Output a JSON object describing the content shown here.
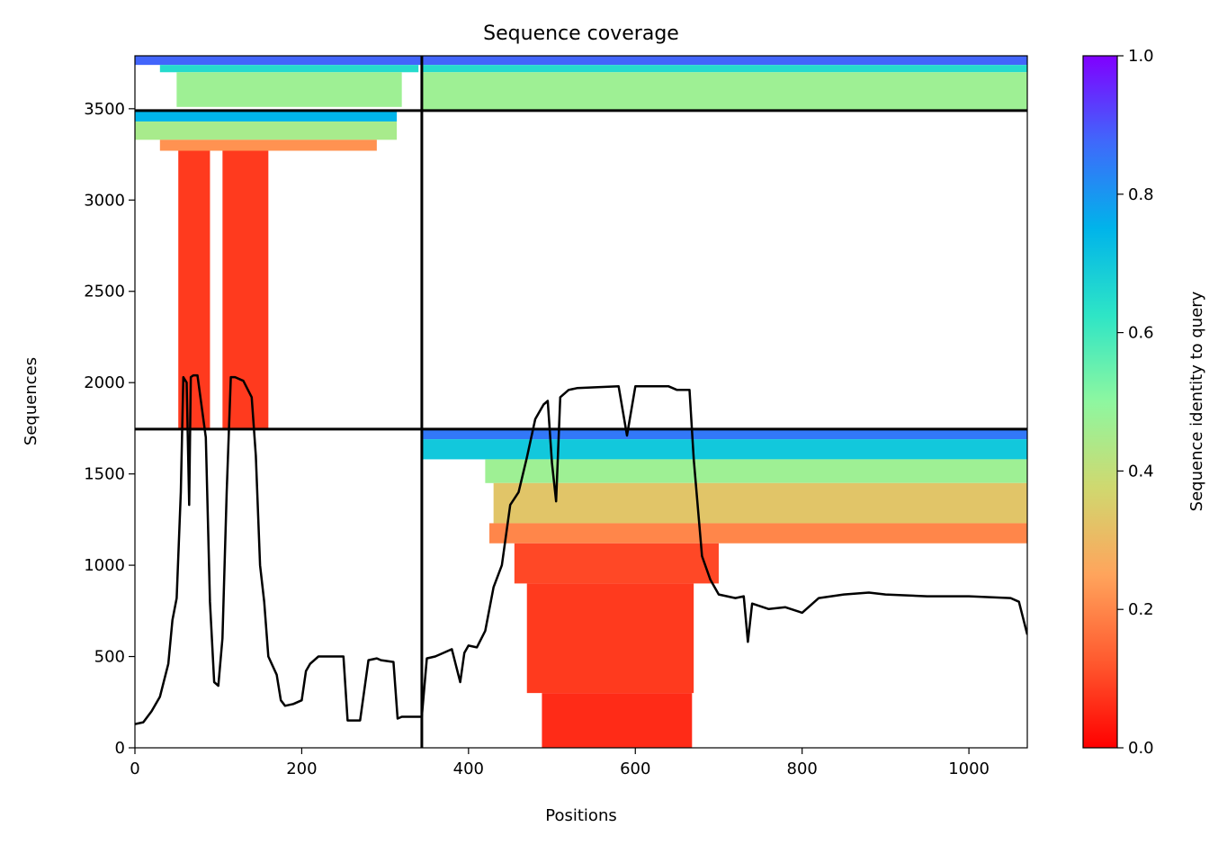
{
  "chart_data": {
    "type": "heatmap",
    "title": "Sequence coverage",
    "xlabel": "Positions",
    "ylabel": "Sequences",
    "xlim": [
      0,
      1070
    ],
    "ylim": [
      0,
      3790
    ],
    "x_ticks": [
      0,
      200,
      400,
      600,
      800,
      1000
    ],
    "y_ticks": [
      0,
      500,
      1000,
      1500,
      2000,
      2500,
      3000,
      3500
    ],
    "colorbar": {
      "label": "Sequence identity to query",
      "range": [
        0,
        1
      ],
      "ticks": [
        "0.0",
        "0.2",
        "0.4",
        "0.6",
        "0.8",
        "1.0"
      ],
      "colormap": "rainbow_r",
      "stops": [
        "#ff0000",
        "#ff5a2f",
        "#ffa45c",
        "#d0d86f",
        "#8ef7a0",
        "#2ee5c6",
        "#00b4ea",
        "#3f69fb",
        "#8000ff"
      ]
    },
    "grid": false,
    "dividers": {
      "x": [
        344
      ],
      "y": [
        1745,
        3490
      ]
    },
    "blocks": [
      {
        "name": "block-lower-left",
        "x": [
          0,
          344
        ],
        "y": [
          0,
          1745
        ],
        "coverage": []
      },
      {
        "name": "block-lower-right",
        "x": [
          344,
          1070
        ],
        "y": [
          0,
          1745
        ],
        "coverage": [
          {
            "y": [
              1690,
              1745
            ],
            "x": [
              344,
              1070
            ],
            "identity": 0.85
          },
          {
            "y": [
              1580,
              1690
            ],
            "x": [
              344,
              1070
            ],
            "identity": 0.7
          },
          {
            "y": [
              1450,
              1580
            ],
            "x": [
              420,
              1070
            ],
            "identity": 0.47
          },
          {
            "y": [
              1230,
              1450
            ],
            "x": [
              430,
              1070
            ],
            "identity": 0.33
          },
          {
            "y": [
              1120,
              1230
            ],
            "x": [
              425,
              1070
            ],
            "identity": 0.2
          },
          {
            "y": [
              900,
              1120
            ],
            "x": [
              455,
              700
            ],
            "identity": 0.1
          },
          {
            "y": [
              300,
              900
            ],
            "x": [
              470,
              670
            ],
            "identity": 0.08
          },
          {
            "y": [
              0,
              300
            ],
            "x": [
              488,
              668
            ],
            "identity": 0.06
          }
        ]
      },
      {
        "name": "block-upper-left",
        "x": [
          0,
          344
        ],
        "y": [
          1745,
          3490
        ],
        "coverage": [
          {
            "y": [
              3430,
              3490
            ],
            "x": [
              0,
              314
            ],
            "identity": 0.75
          },
          {
            "y": [
              3330,
              3430
            ],
            "x": [
              0,
              314
            ],
            "identity": 0.45
          },
          {
            "y": [
              3270,
              3330
            ],
            "x": [
              30,
              290
            ],
            "identity": 0.22
          },
          {
            "y": [
              1745,
              3270
            ],
            "x": [
              52,
              90
            ],
            "identity": 0.08
          },
          {
            "y": [
              1745,
              3270
            ],
            "x": [
              105,
              160
            ],
            "identity": 0.08
          }
        ]
      },
      {
        "name": "block-upper-right",
        "x": [
          344,
          1070
        ],
        "y": [
          3490,
          3790
        ],
        "coverage": [
          {
            "y": [
              3740,
              3790
            ],
            "x": [
              344,
              1070
            ],
            "identity": 0.88
          },
          {
            "y": [
              3700,
              3740
            ],
            "x": [
              344,
              1070
            ],
            "identity": 0.65
          },
          {
            "y": [
              3490,
              3700
            ],
            "x": [
              344,
              1070
            ],
            "identity": 0.47
          }
        ]
      },
      {
        "name": "block-upper-left-top",
        "x": [
          0,
          344
        ],
        "y": [
          3490,
          3790
        ],
        "coverage": [
          {
            "y": [
              3740,
              3790
            ],
            "x": [
              0,
              344
            ],
            "identity": 0.88
          },
          {
            "y": [
              3700,
              3740
            ],
            "x": [
              30,
              340
            ],
            "identity": 0.65
          },
          {
            "y": [
              3510,
              3700
            ],
            "x": [
              50,
              320
            ],
            "identity": 0.47
          }
        ]
      }
    ],
    "coverage_line": {
      "x": [
        0,
        10,
        20,
        30,
        40,
        45,
        50,
        55,
        58,
        62,
        65,
        67,
        70,
        75,
        85,
        90,
        95,
        100,
        105,
        110,
        115,
        120,
        130,
        140,
        145,
        150,
        155,
        160,
        170,
        175,
        180,
        190,
        200,
        205,
        210,
        220,
        250,
        255,
        270,
        280,
        290,
        295,
        310,
        315,
        320,
        344,
        350,
        360,
        370,
        380,
        390,
        395,
        400,
        410,
        420,
        430,
        440,
        450,
        460,
        470,
        480,
        490,
        495,
        500,
        505,
        510,
        520,
        530,
        580,
        590,
        600,
        640,
        650,
        660,
        665,
        670,
        680,
        690,
        700,
        720,
        730,
        735,
        740,
        760,
        780,
        800,
        820,
        850,
        880,
        900,
        950,
        1000,
        1050,
        1060,
        1070
      ],
      "y": [
        130,
        140,
        200,
        280,
        460,
        700,
        820,
        1400,
        2030,
        2000,
        1330,
        2030,
        2040,
        2040,
        1700,
        800,
        360,
        340,
        600,
        1400,
        2030,
        2030,
        2010,
        1920,
        1600,
        1000,
        800,
        500,
        400,
        260,
        230,
        240,
        260,
        420,
        460,
        500,
        500,
        150,
        150,
        480,
        490,
        480,
        470,
        160,
        170,
        170,
        490,
        500,
        520,
        540,
        360,
        520,
        560,
        550,
        640,
        880,
        1000,
        1330,
        1400,
        1590,
        1800,
        1880,
        1900,
        1560,
        1350,
        1920,
        1960,
        1970,
        1980,
        1710,
        1980,
        1980,
        1960,
        1960,
        1960,
        1580,
        1050,
        920,
        840,
        820,
        830,
        580,
        790,
        760,
        770,
        740,
        820,
        840,
        850,
        840,
        830,
        830,
        820,
        800,
        620
      ]
    }
  }
}
